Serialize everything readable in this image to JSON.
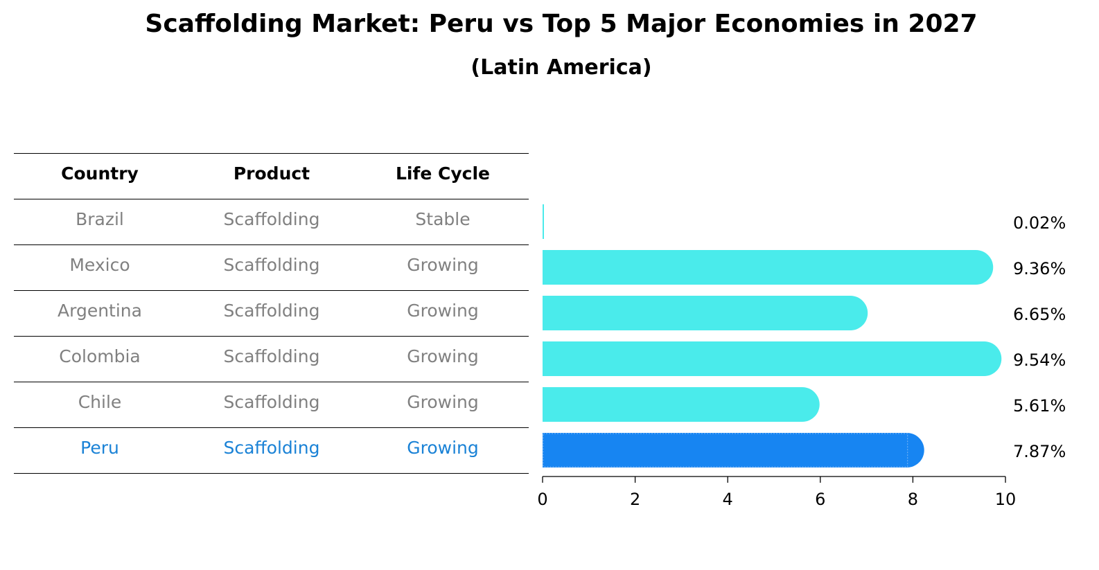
{
  "title": "Scaffolding Market: Peru vs Top 5 Major Economies in 2027",
  "subtitle": "(Latin America)",
  "table": {
    "headers": [
      "Country",
      "Product",
      "Life Cycle"
    ],
    "rows": [
      {
        "country": "Brazil",
        "product": "Scaffolding",
        "life_cycle": "Stable",
        "highlight": false
      },
      {
        "country": "Mexico",
        "product": "Scaffolding",
        "life_cycle": "Growing",
        "highlight": false
      },
      {
        "country": "Argentina",
        "product": "Scaffolding",
        "life_cycle": "Growing",
        "highlight": false
      },
      {
        "country": "Colombia",
        "product": "Scaffolding",
        "life_cycle": "Growing",
        "highlight": false
      },
      {
        "country": "Chile",
        "product": "Scaffolding",
        "life_cycle": "Growing",
        "highlight": false
      },
      {
        "country": "Peru",
        "product": "Scaffolding",
        "life_cycle": "Growing",
        "highlight": true
      }
    ]
  },
  "chart_data": {
    "type": "bar",
    "orientation": "horizontal",
    "categories": [
      "Brazil",
      "Mexico",
      "Argentina",
      "Colombia",
      "Chile",
      "Peru"
    ],
    "values": [
      0.02,
      9.36,
      6.65,
      9.54,
      5.61,
      7.87
    ],
    "value_labels": [
      "0.02%",
      "9.36%",
      "6.65%",
      "9.54%",
      "5.61%",
      "7.87%"
    ],
    "highlight_category": "Peru",
    "xlim": [
      0,
      10
    ],
    "xticks": [
      0,
      2,
      4,
      6,
      8,
      10
    ],
    "xlabel": "",
    "ylabel": "",
    "grid": false
  },
  "colors": {
    "bar": "#4aebeb",
    "highlight_bar": "#1785f2",
    "highlight_text": "#1a82d6",
    "muted_text": "#808080",
    "text": "#000000"
  }
}
